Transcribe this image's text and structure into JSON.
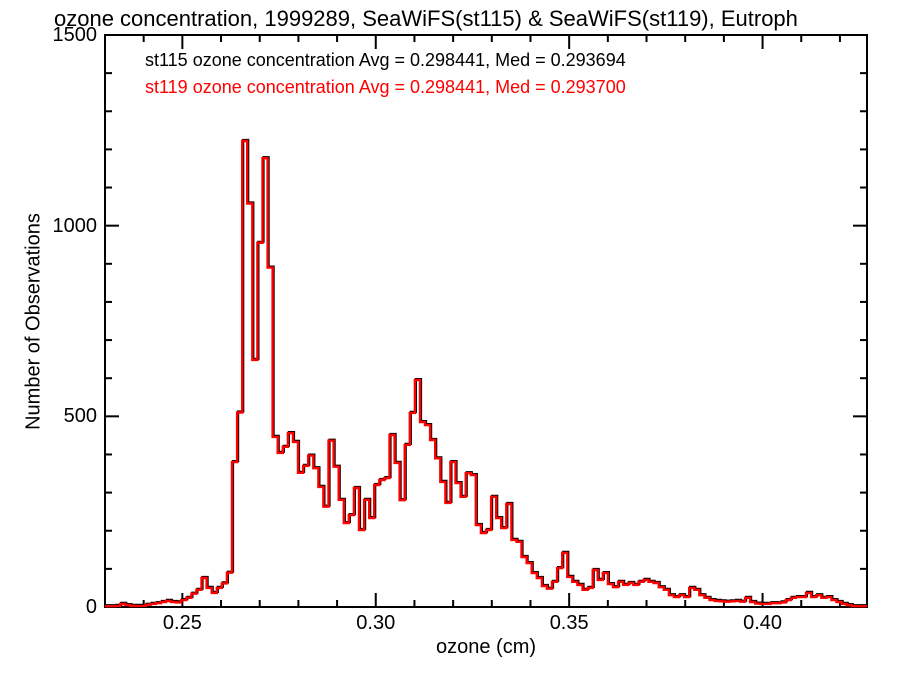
{
  "title": "ozone concentration, 1999289, SeaWiFS(st115) & SeaWiFS(st119), Eutroph",
  "legend": {
    "line1": "st115 ozone concentration Avg = 0.298441, Med = 0.293694",
    "line2": "st119 ozone concentration Avg = 0.298441, Med = 0.293700",
    "line1_color": "#000000",
    "line2_color": "#ff0000"
  },
  "chart_data": {
    "type": "bar",
    "subtype": "step-outline-histogram",
    "title": "ozone concentration, 1999289, SeaWiFS(st115) & SeaWiFS(st119), Eutroph",
    "xlabel": "ozone (cm)",
    "ylabel": "Number of Observations",
    "xlim": [
      0.23,
      0.427
    ],
    "ylim": [
      0,
      1500
    ],
    "x_major_ticks": [
      0.25,
      0.3,
      0.35,
      0.4
    ],
    "x_major_tick_labels": [
      "0.25",
      "0.30",
      "0.35",
      "0.40"
    ],
    "x_minor_tick_interval": 0.01,
    "y_major_ticks": [
      0,
      500,
      1000,
      1500
    ],
    "y_major_tick_labels": [
      "0",
      "500",
      "1000",
      "1500"
    ],
    "y_minor_tick_interval": 100,
    "grid": false,
    "legend_position": "top-left-inside",
    "bin_start": 0.23,
    "bin_width": 0.0013133,
    "series": [
      {
        "name": "st115 ozone concentration",
        "color": "#000000",
        "avg": 0.298441,
        "med": 0.293694
      },
      {
        "name": "st119 ozone concentration",
        "color": "#ff0000",
        "avg": 0.298441,
        "med": 0.2937
      }
    ],
    "series_note": "both series overlap almost exactly; red st119 is drawn over black st115",
    "values": [
      2,
      2,
      3,
      8,
      5,
      3,
      3,
      3,
      6,
      8,
      10,
      13,
      16,
      13,
      12,
      18,
      24,
      35,
      45,
      76,
      50,
      37,
      50,
      62,
      90,
      380,
      510,
      1222,
      1058,
      648,
      955,
      1177,
      890,
      446,
      404,
      420,
      456,
      433,
      352,
      370,
      397,
      364,
      315,
      263,
      436,
      368,
      281,
      220,
      241,
      312,
      202,
      281,
      233,
      320,
      333,
      338,
      451,
      378,
      280,
      425,
      509,
      595,
      485,
      477,
      438,
      390,
      328,
      273,
      380,
      325,
      289,
      351,
      346,
      215,
      194,
      202,
      289,
      233,
      207,
      270,
      176,
      171,
      131,
      115,
      89,
      76,
      55,
      48,
      66,
      102,
      142,
      79,
      66,
      58,
      45,
      50,
      97,
      71,
      89,
      60,
      52,
      66,
      58,
      63,
      58,
      66,
      71,
      66,
      63,
      52,
      45,
      31,
      26,
      31,
      26,
      50,
      45,
      31,
      24,
      18,
      16,
      15,
      14,
      15,
      16,
      14,
      24,
      13,
      9,
      8,
      8,
      10,
      10,
      12,
      18,
      24,
      26,
      26,
      37,
      26,
      31,
      24,
      26,
      18,
      13,
      8,
      5,
      2,
      2,
      2
    ]
  }
}
